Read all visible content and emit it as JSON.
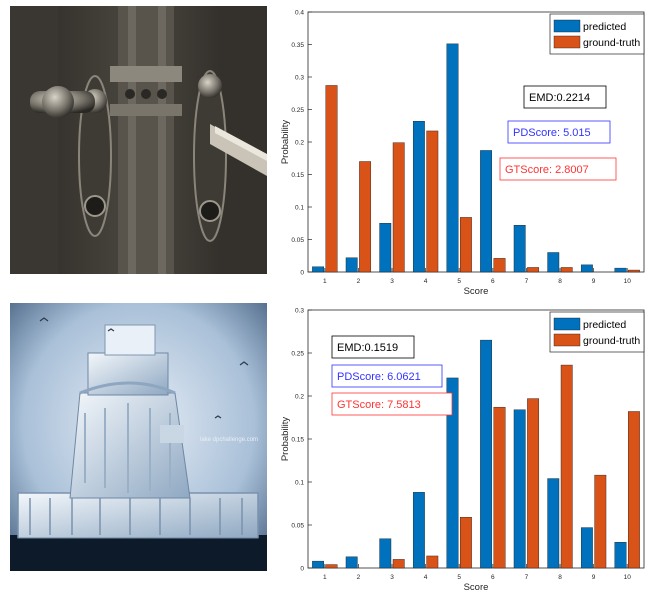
{
  "photos": [
    {
      "alt": "ornate door handles",
      "colors": {
        "dark": "#1b1b19",
        "mid": "#5a574f",
        "light": "#b7b2a5"
      }
    },
    {
      "alt": "ice covered lighthouse",
      "watermark": "lake dpchallenge.com",
      "colors": {
        "sky": "#c9d9ea",
        "ice": "#dfe9f3",
        "dark": "#0c1a2a"
      }
    }
  ],
  "chart_data": [
    {
      "type": "bar",
      "categories": [
        "1",
        "2",
        "3",
        "4",
        "5",
        "6",
        "7",
        "8",
        "9",
        "10"
      ],
      "series": [
        {
          "name": "predicted",
          "color": "#0072BD",
          "values": [
            0.008,
            0.022,
            0.075,
            0.232,
            0.351,
            0.187,
            0.072,
            0.03,
            0.011,
            0.006
          ]
        },
        {
          "name": "ground-truth",
          "color": "#D95319",
          "values": [
            0.287,
            0.17,
            0.199,
            0.217,
            0.084,
            0.021,
            0.007,
            0.007,
            0.0,
            0.003
          ]
        }
      ],
      "xlabel": "Score",
      "ylabel": "Probability",
      "ylim": [
        0,
        0.4
      ],
      "yticks": [
        "0",
        "0.05",
        "0.1",
        "0.15",
        "0.2",
        "0.25",
        "0.3",
        "0.35",
        "0.4"
      ],
      "annotations": [
        {
          "text": "EMD:0.2214",
          "color": "#000000"
        },
        {
          "text": "PDScore: 5.015",
          "color": "#3333ff"
        },
        {
          "text": "GTScore: 2.8007",
          "color": "#ff3333"
        }
      ],
      "legend_position": "top-right"
    },
    {
      "type": "bar",
      "categories": [
        "1",
        "2",
        "3",
        "4",
        "5",
        "6",
        "7",
        "8",
        "9",
        "10"
      ],
      "series": [
        {
          "name": "predicted",
          "color": "#0072BD",
          "values": [
            0.008,
            0.013,
            0.034,
            0.088,
            0.221,
            0.265,
            0.184,
            0.104,
            0.047,
            0.03
          ]
        },
        {
          "name": "ground-truth",
          "color": "#D95319",
          "values": [
            0.004,
            0.0,
            0.01,
            0.014,
            0.059,
            0.187,
            0.197,
            0.236,
            0.108,
            0.182
          ]
        }
      ],
      "xlabel": "Score",
      "ylabel": "Probability",
      "ylim": [
        0,
        0.3
      ],
      "yticks": [
        "0",
        "0.05",
        "0.1",
        "0.15",
        "0.2",
        "0.25",
        "0.3"
      ],
      "annotations": [
        {
          "text": "EMD:0.1519",
          "color": "#000000"
        },
        {
          "text": "PDScore: 6.0621",
          "color": "#3333ff"
        },
        {
          "text": "GTScore: 7.5813",
          "color": "#ff3333"
        }
      ],
      "legend_position": "top-right"
    }
  ]
}
